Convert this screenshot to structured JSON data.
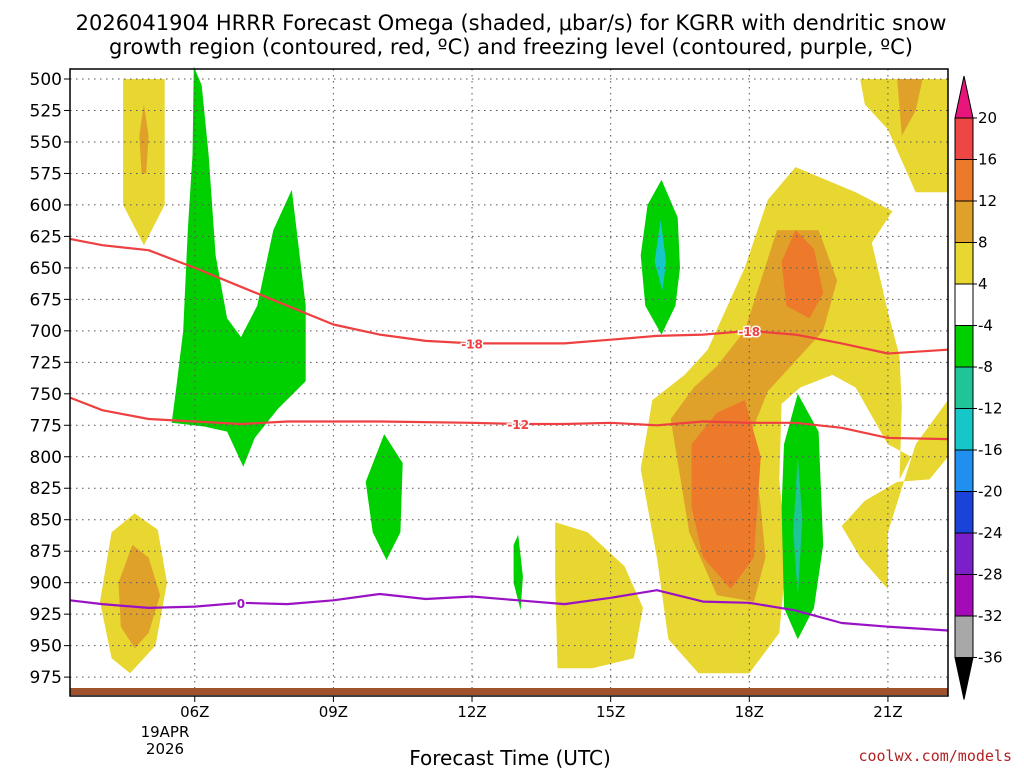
{
  "chart_data": {
    "type": "time-height cross section (filled contour)",
    "title_line1": "2026041904 HRRR Forecast Omega (shaded, μbar/s) for KGRR with dendritic snow",
    "title_line2": "growth region (contoured, red, ºC) and freezing level (contoured, purple, ºC)",
    "xlabel": "Forecast Time (UTC)",
    "date_label": [
      "19APR",
      "2026"
    ],
    "x_range_hours": [
      3.3,
      22.3
    ],
    "y_range_hpa": [
      500,
      990
    ],
    "y_ticks": [
      500,
      525,
      550,
      575,
      600,
      625,
      650,
      675,
      700,
      725,
      750,
      775,
      800,
      825,
      850,
      875,
      900,
      925,
      950,
      975
    ],
    "x_ticks": [
      {
        "hour": 6,
        "label": "06Z"
      },
      {
        "hour": 9,
        "label": "09Z"
      },
      {
        "hour": 12,
        "label": "12Z"
      },
      {
        "hour": 15,
        "label": "15Z"
      },
      {
        "hour": 18,
        "label": "18Z"
      },
      {
        "hour": 21,
        "label": "21Z"
      }
    ],
    "colorbar": {
      "units": "μbar/s",
      "labels": [
        "20",
        "16",
        "12",
        "8",
        "4",
        "-4",
        "-8",
        "-12",
        "-16",
        "-20",
        "-24",
        "-28",
        "-32",
        "-36"
      ],
      "bins": [
        {
          "range": ">20",
          "color": "#e8157a"
        },
        {
          "range": "16 to 20",
          "color": "#ee4545"
        },
        {
          "range": "12 to 16",
          "color": "#ec7a2a"
        },
        {
          "range": "8 to 12",
          "color": "#e0a12a"
        },
        {
          "range": "4 to 8",
          "color": "#e8d631"
        },
        {
          "range": "-4 to 4",
          "color": "#ffffff"
        },
        {
          "range": "-8 to -4",
          "color": "#00d000"
        },
        {
          "range": "-12 to -8",
          "color": "#1fc596"
        },
        {
          "range": "-16 to -12",
          "color": "#16c7c7"
        },
        {
          "range": "-20 to -16",
          "color": "#2090f0"
        },
        {
          "range": "-24 to -20",
          "color": "#1a44d9"
        },
        {
          "range": "-28 to -24",
          "color": "#7a1fc9"
        },
        {
          "range": "-32 to -28",
          "color": "#a40ab8"
        },
        {
          "range": "-36 to -32",
          "color": "#a8a8a8"
        },
        {
          "range": "<-36",
          "color": "#000000"
        }
      ]
    },
    "contours": [
      {
        "name": "dgz-top",
        "level_label": "-18",
        "units": "ºC",
        "color": "#ee4040",
        "points": [
          [
            3.3,
            627
          ],
          [
            4.0,
            632
          ],
          [
            5.0,
            636
          ],
          [
            6.0,
            650
          ],
          [
            7.0,
            665
          ],
          [
            8.0,
            680
          ],
          [
            9.0,
            695
          ],
          [
            10.0,
            703
          ],
          [
            11.0,
            708
          ],
          [
            12.0,
            710
          ],
          [
            13.0,
            710
          ],
          [
            14.0,
            710
          ],
          [
            15.0,
            707
          ],
          [
            16.0,
            704
          ],
          [
            17.0,
            703
          ],
          [
            18.0,
            700
          ],
          [
            19.0,
            703
          ],
          [
            20.0,
            710
          ],
          [
            21.0,
            718
          ],
          [
            22.3,
            715
          ]
        ]
      },
      {
        "name": "dgz-bottom",
        "level_label": "-12",
        "units": "ºC",
        "color": "#ee4040",
        "points": [
          [
            3.3,
            753
          ],
          [
            4.0,
            763
          ],
          [
            5.0,
            770
          ],
          [
            6.0,
            772
          ],
          [
            7.0,
            774
          ],
          [
            8.0,
            772
          ],
          [
            10.0,
            772
          ],
          [
            12.0,
            773
          ],
          [
            13.0,
            774
          ],
          [
            14.0,
            774
          ],
          [
            15.0,
            773
          ],
          [
            16.0,
            775
          ],
          [
            17.0,
            772
          ],
          [
            18.0,
            773
          ],
          [
            19.0,
            773
          ],
          [
            20.0,
            777
          ],
          [
            21.0,
            785
          ],
          [
            22.3,
            786
          ]
        ]
      },
      {
        "name": "freezing-level",
        "level_label": "0",
        "units": "ºC",
        "color": "#9a12c4",
        "points": [
          [
            3.3,
            914
          ],
          [
            4.0,
            917
          ],
          [
            5.0,
            920
          ],
          [
            6.0,
            919
          ],
          [
            7.0,
            916
          ],
          [
            8.0,
            917
          ],
          [
            9.0,
            914
          ],
          [
            10.0,
            909
          ],
          [
            11.0,
            913
          ],
          [
            12.0,
            911
          ],
          [
            13.0,
            914
          ],
          [
            14.0,
            917
          ],
          [
            15.0,
            912
          ],
          [
            16.0,
            906
          ],
          [
            17.0,
            915
          ],
          [
            18.0,
            916
          ],
          [
            19.0,
            922
          ],
          [
            20.0,
            932
          ],
          [
            21.0,
            935
          ],
          [
            22.3,
            938
          ]
        ]
      }
    ],
    "omega_regions": [
      {
        "name": "rising-column-04z",
        "color": "#e8d631",
        "points": [
          [
            4.45,
            500
          ],
          [
            5.35,
            500
          ],
          [
            5.35,
            600
          ],
          [
            4.9,
            632
          ],
          [
            4.45,
            600
          ]
        ]
      },
      {
        "name": "rising-column-04z-core",
        "color": "#e0a12a",
        "points": [
          [
            4.9,
            520
          ],
          [
            5.0,
            545
          ],
          [
            4.95,
            575
          ],
          [
            4.85,
            575
          ],
          [
            4.8,
            545
          ]
        ]
      },
      {
        "name": "sinking-column-05z",
        "color": "#00d000",
        "points": [
          [
            5.5,
            773
          ],
          [
            5.6,
            745
          ],
          [
            5.75,
            700
          ],
          [
            5.85,
            620
          ],
          [
            5.95,
            560
          ],
          [
            5.98,
            490
          ],
          [
            6.15,
            505
          ],
          [
            6.3,
            560
          ],
          [
            6.45,
            640
          ],
          [
            6.7,
            690
          ],
          [
            7.0,
            705
          ],
          [
            7.35,
            680
          ],
          [
            7.7,
            620
          ],
          [
            8.1,
            588
          ],
          [
            8.4,
            680
          ],
          [
            8.4,
            740
          ],
          [
            7.8,
            762
          ],
          [
            7.3,
            785
          ],
          [
            7.05,
            808
          ],
          [
            6.7,
            780
          ],
          [
            6.2,
            776
          ]
        ]
      },
      {
        "name": "sinking-cell-10z",
        "color": "#00d000",
        "points": [
          [
            10.1,
            782
          ],
          [
            10.5,
            805
          ],
          [
            10.45,
            860
          ],
          [
            10.15,
            882
          ],
          [
            9.85,
            860
          ],
          [
            9.7,
            820
          ]
        ]
      },
      {
        "name": "sinking-cell-13z",
        "color": "#00d000",
        "points": [
          [
            13.0,
            862
          ],
          [
            13.1,
            895
          ],
          [
            13.05,
            922
          ],
          [
            12.9,
            900
          ],
          [
            12.9,
            870
          ]
        ]
      },
      {
        "name": "rising-lobe-03z",
        "color": "#e8d631",
        "points": [
          [
            4.2,
            860
          ],
          [
            4.7,
            845
          ],
          [
            5.2,
            858
          ],
          [
            5.4,
            900
          ],
          [
            5.15,
            950
          ],
          [
            4.6,
            972
          ],
          [
            4.2,
            960
          ],
          [
            3.95,
            915
          ]
        ]
      },
      {
        "name": "rising-lobe-03z-core",
        "color": "#e0a12a",
        "points": [
          [
            4.65,
            870
          ],
          [
            5.0,
            880
          ],
          [
            5.25,
            910
          ],
          [
            5.0,
            940
          ],
          [
            4.7,
            952
          ],
          [
            4.4,
            935
          ],
          [
            4.35,
            900
          ]
        ]
      },
      {
        "name": "rising-lobe-15z",
        "color": "#e8d631",
        "points": [
          [
            13.8,
            852
          ],
          [
            14.5,
            860
          ],
          [
            15.3,
            887
          ],
          [
            15.7,
            920
          ],
          [
            15.5,
            960
          ],
          [
            14.6,
            968
          ],
          [
            13.85,
            968
          ],
          [
            13.8,
            900
          ]
        ]
      },
      {
        "name": "sinking-column-16z",
        "color": "#00d000",
        "points": [
          [
            16.1,
            580
          ],
          [
            16.45,
            610
          ],
          [
            16.5,
            650
          ],
          [
            16.4,
            680
          ],
          [
            16.1,
            703
          ],
          [
            15.75,
            680
          ],
          [
            15.65,
            640
          ],
          [
            15.8,
            600
          ]
        ]
      },
      {
        "name": "sinking-column-16z-core",
        "color": "#16c7c7",
        "points": [
          [
            16.08,
            612
          ],
          [
            16.2,
            645
          ],
          [
            16.12,
            668
          ],
          [
            15.95,
            645
          ]
        ]
      },
      {
        "name": "rising-complex-18z",
        "color": "#e8d631",
        "points": [
          [
            15.65,
            810
          ],
          [
            15.9,
            755
          ],
          [
            16.6,
            735
          ],
          [
            17.1,
            715
          ],
          [
            17.9,
            650
          ],
          [
            18.4,
            596
          ],
          [
            19.0,
            570
          ],
          [
            20.3,
            590
          ],
          [
            21.1,
            605
          ],
          [
            20.65,
            630
          ],
          [
            21.0,
            685
          ],
          [
            21.25,
            720
          ],
          [
            21.3,
            760
          ],
          [
            21.25,
            818
          ],
          [
            21.5,
            800
          ],
          [
            21.0,
            790
          ],
          [
            20.3,
            745
          ],
          [
            19.8,
            735
          ],
          [
            19.1,
            745
          ],
          [
            18.7,
            758
          ],
          [
            18.65,
            818
          ],
          [
            18.8,
            880
          ],
          [
            18.65,
            940
          ],
          [
            18.0,
            972
          ],
          [
            16.9,
            972
          ],
          [
            16.25,
            945
          ],
          [
            16.0,
            880
          ]
        ]
      },
      {
        "name": "rising-complex-18z-mid",
        "color": "#e0a12a",
        "points": [
          [
            16.3,
            770
          ],
          [
            16.8,
            745
          ],
          [
            17.3,
            728
          ],
          [
            17.9,
            700
          ],
          [
            18.6,
            620
          ],
          [
            19.5,
            620
          ],
          [
            19.9,
            660
          ],
          [
            19.6,
            700
          ],
          [
            18.4,
            748
          ],
          [
            18.05,
            780
          ],
          [
            18.25,
            840
          ],
          [
            18.35,
            880
          ],
          [
            18.1,
            915
          ],
          [
            17.3,
            910
          ],
          [
            16.7,
            860
          ]
        ]
      },
      {
        "name": "rising-complex-18z-core",
        "color": "#ec7a2a",
        "points": [
          [
            16.75,
            790
          ],
          [
            17.3,
            765
          ],
          [
            17.9,
            755
          ],
          [
            18.25,
            800
          ],
          [
            18.1,
            880
          ],
          [
            17.6,
            905
          ],
          [
            17.0,
            880
          ],
          [
            16.75,
            840
          ]
        ]
      },
      {
        "name": "rising-complex-18z-top-core",
        "color": "#ec7a2a",
        "points": [
          [
            19.0,
            620
          ],
          [
            19.4,
            635
          ],
          [
            19.6,
            670
          ],
          [
            19.3,
            690
          ],
          [
            18.8,
            680
          ],
          [
            18.7,
            645
          ]
        ]
      },
      {
        "name": "sinking-column-19z",
        "color": "#00d000",
        "points": [
          [
            19.05,
            750
          ],
          [
            19.5,
            780
          ],
          [
            19.6,
            870
          ],
          [
            19.4,
            920
          ],
          [
            19.05,
            945
          ],
          [
            18.75,
            920
          ],
          [
            18.7,
            840
          ],
          [
            18.75,
            790
          ]
        ]
      },
      {
        "name": "sinking-column-19z-core",
        "color": "#1fc596",
        "points": [
          [
            19.05,
            800
          ],
          [
            19.15,
            850
          ],
          [
            19.05,
            910
          ],
          [
            18.95,
            860
          ]
        ]
      },
      {
        "name": "rising-top-21z",
        "color": "#e8d631",
        "points": [
          [
            20.4,
            500
          ],
          [
            22.3,
            500
          ],
          [
            22.3,
            590
          ],
          [
            21.6,
            590
          ],
          [
            21.0,
            540
          ],
          [
            20.5,
            520
          ]
        ]
      },
      {
        "name": "rising-top-21z-core",
        "color": "#e0a12a",
        "points": [
          [
            21.2,
            500
          ],
          [
            21.75,
            500
          ],
          [
            21.6,
            525
          ],
          [
            21.3,
            545
          ]
        ]
      },
      {
        "name": "rising-east-21z",
        "color": "#e8d631",
        "points": [
          [
            20.0,
            855
          ],
          [
            20.5,
            835
          ],
          [
            21.2,
            820
          ],
          [
            21.9,
            818
          ],
          [
            22.3,
            800
          ],
          [
            22.3,
            755
          ],
          [
            21.6,
            790
          ],
          [
            21.0,
            860
          ],
          [
            21.0,
            905
          ],
          [
            20.4,
            880
          ]
        ]
      }
    ],
    "credit": "coolwx.com/models"
  }
}
